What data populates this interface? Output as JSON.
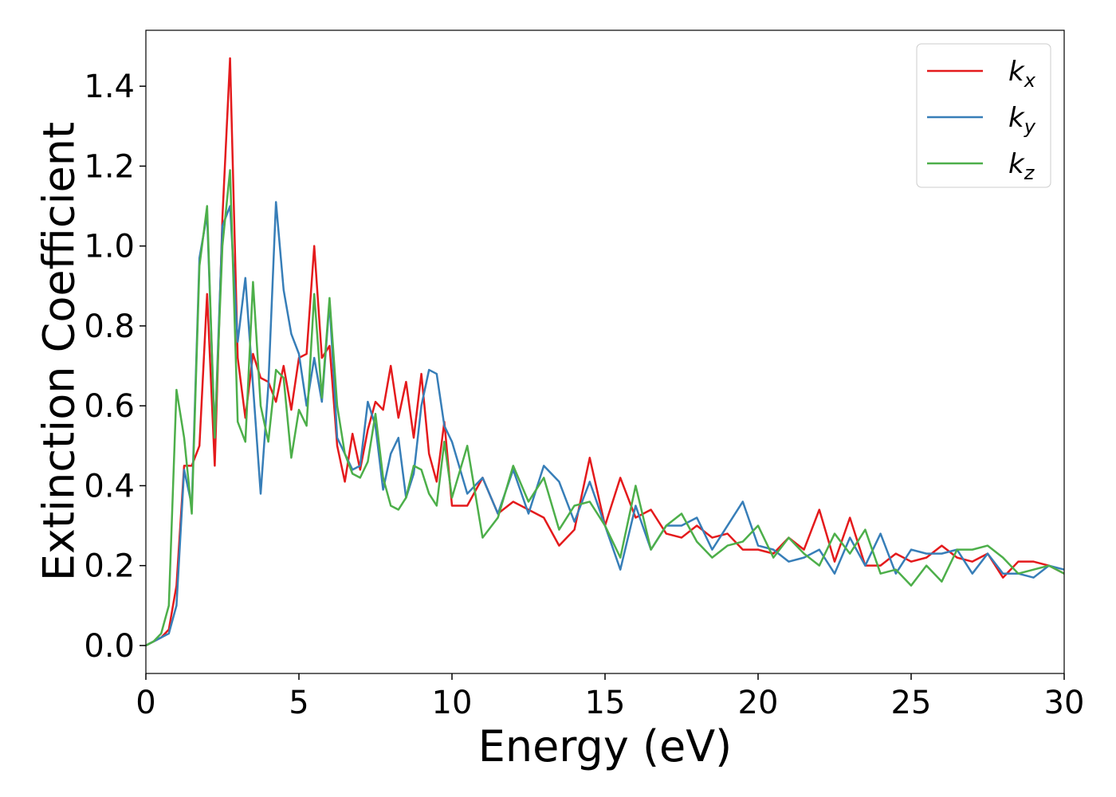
{
  "chart_data": {
    "type": "line",
    "x_label": "Energy (eV)",
    "y_label": "Extinction Coefficient",
    "x": [
      0,
      0.25,
      0.5,
      0.75,
      1,
      1.25,
      1.5,
      1.75,
      2,
      2.25,
      2.5,
      2.75,
      3,
      3.25,
      3.5,
      3.75,
      4,
      4.25,
      4.5,
      4.75,
      5,
      5.25,
      5.5,
      5.75,
      6,
      6.25,
      6.5,
      6.75,
      7,
      7.25,
      7.5,
      7.75,
      8,
      8.25,
      8.5,
      8.75,
      9,
      9.25,
      9.5,
      9.75,
      10,
      10.5,
      11,
      11.5,
      12,
      12.5,
      13,
      13.5,
      14,
      14.5,
      15,
      15.5,
      16,
      16.5,
      17,
      17.5,
      18,
      18.5,
      19,
      19.5,
      20,
      20.5,
      21,
      21.5,
      22,
      22.5,
      23,
      23.5,
      24,
      24.5,
      25,
      25.5,
      26,
      26.5,
      27,
      27.5,
      28,
      28.5,
      29,
      29.5,
      30
    ],
    "series": [
      {
        "name": "kx",
        "color": "#e41a1c",
        "values": [
          0,
          0.01,
          0.02,
          0.04,
          0.15,
          0.45,
          0.45,
          0.5,
          0.88,
          0.45,
          1.07,
          1.47,
          0.72,
          0.57,
          0.73,
          0.67,
          0.66,
          0.61,
          0.7,
          0.59,
          0.72,
          0.73,
          1.0,
          0.72,
          0.75,
          0.5,
          0.41,
          0.53,
          0.44,
          0.54,
          0.61,
          0.59,
          0.7,
          0.57,
          0.66,
          0.52,
          0.68,
          0.48,
          0.41,
          0.56,
          0.35,
          0.35,
          0.42,
          0.33,
          0.36,
          0.34,
          0.32,
          0.25,
          0.29,
          0.47,
          0.3,
          0.42,
          0.32,
          0.34,
          0.28,
          0.27,
          0.3,
          0.27,
          0.28,
          0.24,
          0.24,
          0.23,
          0.27,
          0.24,
          0.34,
          0.21,
          0.32,
          0.2,
          0.2,
          0.23,
          0.21,
          0.22,
          0.25,
          0.22,
          0.21,
          0.23,
          0.17,
          0.21,
          0.21,
          0.2,
          0.18
        ]
      },
      {
        "name": "ky",
        "color": "#377eb8",
        "values": [
          0,
          0.01,
          0.02,
          0.03,
          0.1,
          0.44,
          0.35,
          0.97,
          1.08,
          0.52,
          1.05,
          1.1,
          0.76,
          0.92,
          0.65,
          0.38,
          0.65,
          1.11,
          0.89,
          0.78,
          0.73,
          0.6,
          0.72,
          0.61,
          0.86,
          0.52,
          0.48,
          0.44,
          0.45,
          0.61,
          0.55,
          0.39,
          0.48,
          0.52,
          0.37,
          0.43,
          0.6,
          0.69,
          0.68,
          0.55,
          0.51,
          0.38,
          0.42,
          0.33,
          0.44,
          0.33,
          0.45,
          0.41,
          0.31,
          0.41,
          0.3,
          0.19,
          0.35,
          0.24,
          0.3,
          0.3,
          0.32,
          0.24,
          0.3,
          0.36,
          0.25,
          0.24,
          0.21,
          0.22,
          0.24,
          0.18,
          0.27,
          0.2,
          0.28,
          0.18,
          0.24,
          0.23,
          0.23,
          0.24,
          0.18,
          0.23,
          0.18,
          0.18,
          0.17,
          0.2,
          0.19
        ]
      },
      {
        "name": "kz",
        "color": "#4daf4a",
        "values": [
          0,
          0.01,
          0.03,
          0.1,
          0.64,
          0.52,
          0.33,
          0.95,
          1.1,
          0.52,
          1.0,
          1.19,
          0.56,
          0.51,
          0.91,
          0.6,
          0.51,
          0.69,
          0.67,
          0.47,
          0.59,
          0.55,
          0.88,
          0.62,
          0.87,
          0.6,
          0.48,
          0.43,
          0.42,
          0.46,
          0.58,
          0.42,
          0.35,
          0.34,
          0.37,
          0.45,
          0.44,
          0.38,
          0.35,
          0.51,
          0.37,
          0.5,
          0.27,
          0.32,
          0.45,
          0.36,
          0.42,
          0.29,
          0.35,
          0.36,
          0.3,
          0.22,
          0.4,
          0.24,
          0.3,
          0.33,
          0.26,
          0.22,
          0.25,
          0.26,
          0.3,
          0.22,
          0.27,
          0.23,
          0.2,
          0.28,
          0.23,
          0.29,
          0.18,
          0.19,
          0.15,
          0.2,
          0.16,
          0.24,
          0.24,
          0.25,
          0.22,
          0.18,
          0.19,
          0.2,
          0.18
        ]
      }
    ],
    "xlim": [
      0,
      30
    ],
    "xticks": [
      0,
      5,
      10,
      15,
      20,
      25,
      30
    ],
    "ylim": [
      -0.07,
      1.54
    ],
    "yticks": [
      {
        "value": 0,
        "label": "0.0"
      },
      {
        "value": 0.2,
        "label": "0.2"
      },
      {
        "value": 0.4,
        "label": "0.4"
      },
      {
        "value": 0.6,
        "label": "0.6"
      },
      {
        "value": 0.8,
        "label": "0.8"
      },
      {
        "value": 1,
        "label": "1.0"
      },
      {
        "value": 1.2,
        "label": "1.2"
      },
      {
        "value": 1.4,
        "label": "1.4"
      }
    ],
    "legend": "upper right",
    "grid": false
  }
}
